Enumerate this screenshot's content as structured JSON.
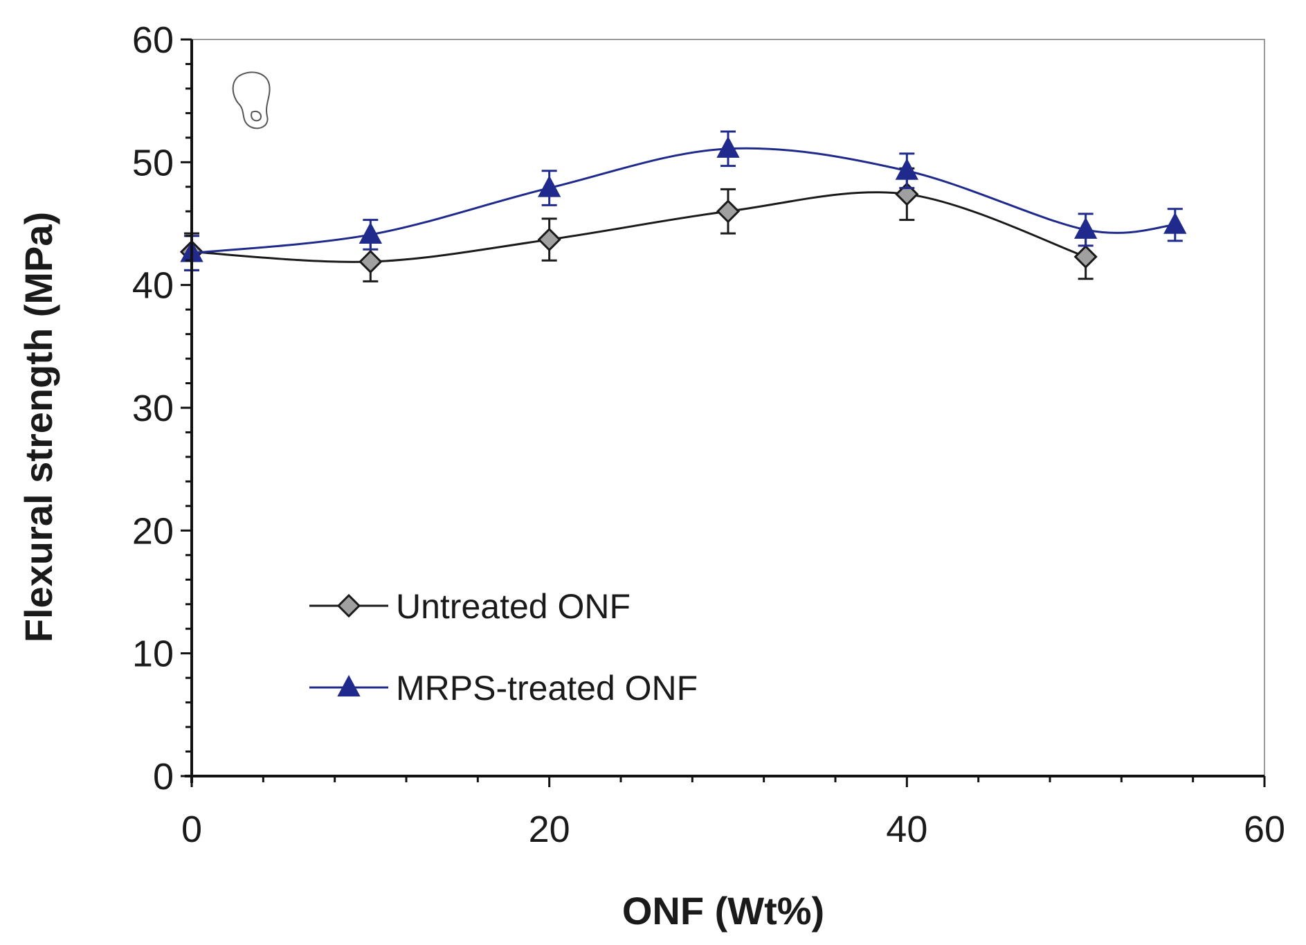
{
  "chart_data": {
    "type": "line",
    "title": "",
    "xlabel": "ONF (Wt%)",
    "ylabel": "Flexural strength (MPa)",
    "xlim": [
      0,
      60
    ],
    "ylim": [
      0,
      60
    ],
    "xticks": [
      "0",
      "20",
      "40",
      "60"
    ],
    "yticks": [
      "0",
      "10",
      "20",
      "30",
      "40",
      "50",
      "60"
    ],
    "grid": false,
    "legend_position": "bottom-left",
    "series": [
      {
        "name": "Untreated ONF",
        "marker": "diamond",
        "color": "#1a1a1a",
        "marker_fill": "#a0a0a0",
        "x": [
          0,
          10,
          20,
          30,
          40,
          50
        ],
        "y": [
          42.7,
          41.9,
          43.7,
          46.0,
          47.4,
          42.3
        ],
        "error": [
          1.5,
          1.6,
          1.7,
          1.8,
          2.1,
          1.8
        ]
      },
      {
        "name": "MRPS-treated ONF",
        "marker": "triangle",
        "color": "#1f2a8c",
        "marker_fill": "#1f2a8c",
        "x": [
          0,
          10,
          20,
          30,
          40,
          50,
          55
        ],
        "y": [
          42.6,
          44.1,
          47.9,
          51.1,
          49.3,
          44.5,
          44.9
        ],
        "error": [
          1.4,
          1.2,
          1.4,
          1.4,
          1.4,
          1.3,
          1.3
        ]
      }
    ]
  }
}
